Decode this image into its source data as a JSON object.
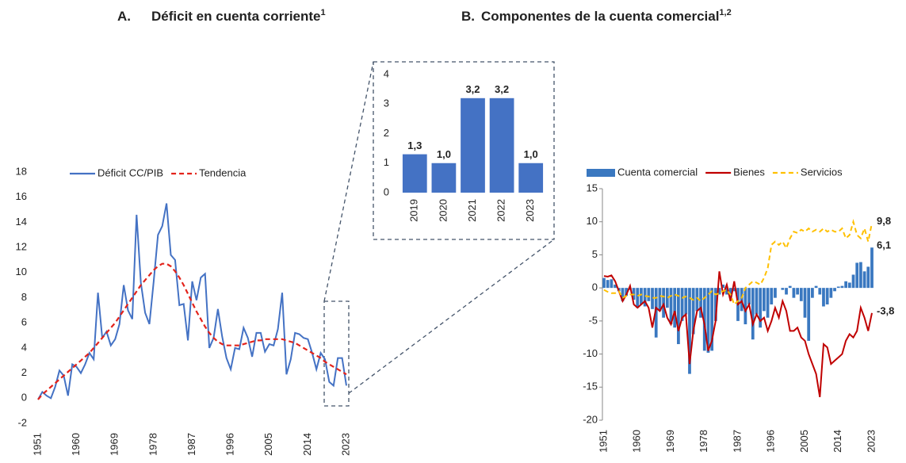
{
  "chart_data": [
    {
      "type": "line",
      "label": "A.",
      "title": "Déficit en cuenta corriente",
      "superscript": "1",
      "x": [
        1951,
        1952,
        1953,
        1954,
        1955,
        1956,
        1957,
        1958,
        1959,
        1960,
        1961,
        1962,
        1963,
        1964,
        1965,
        1966,
        1967,
        1968,
        1969,
        1970,
        1971,
        1972,
        1973,
        1974,
        1975,
        1976,
        1977,
        1978,
        1979,
        1980,
        1981,
        1982,
        1983,
        1984,
        1985,
        1986,
        1987,
        1988,
        1989,
        1990,
        1991,
        1992,
        1993,
        1994,
        1995,
        1996,
        1997,
        1998,
        1999,
        2000,
        2001,
        2002,
        2003,
        2004,
        2005,
        2006,
        2007,
        2008,
        2009,
        2010,
        2011,
        2012,
        2013,
        2014,
        2015,
        2016,
        2017,
        2018,
        2019,
        2020,
        2021,
        2022,
        2023
      ],
      "series": [
        {
          "name": "Déficit CC/PIB",
          "color": "#4472c4",
          "dash": false,
          "values": [
            -0.1,
            0.5,
            0.2,
            0,
            0.9,
            2.2,
            1.8,
            0.2,
            2.7,
            2.5,
            2.0,
            2.7,
            3.6,
            3.1,
            8.4,
            4.8,
            5.3,
            4.2,
            4.7,
            5.9,
            9.0,
            7.0,
            6.3,
            14.6,
            9.2,
            6.8,
            5.9,
            9.3,
            13.0,
            13.7,
            15.5,
            11.4,
            11.0,
            7.4,
            7.5,
            4.6,
            9.3,
            7.8,
            9.6,
            9.9,
            4.0,
            4.8,
            7.1,
            4.9,
            3.2,
            2.3,
            4.0,
            3.9,
            5.6,
            4.8,
            3.3,
            5.2,
            5.2,
            3.7,
            4.3,
            4.2,
            5.5,
            8.4,
            1.9,
            3.1,
            5.2,
            5.1,
            4.8,
            4.7,
            3.6,
            2.3,
            3.6,
            3.1,
            1.3,
            1.0,
            3.2,
            3.2,
            1.0
          ]
        },
        {
          "name": "Tendencia",
          "color": "#e3231b",
          "dash": true,
          "values": [
            -0.1,
            0.3,
            0.6,
            0.9,
            1.2,
            1.5,
            1.8,
            2.1,
            2.4,
            2.7,
            3.0,
            3.3,
            3.6,
            4.0,
            4.4,
            4.8,
            5.2,
            5.6,
            6.0,
            6.5,
            7.0,
            7.5,
            8.0,
            8.5,
            9.0,
            9.4,
            9.8,
            10.2,
            10.5,
            10.7,
            10.7,
            10.5,
            10.1,
            9.6,
            9.0,
            8.3,
            7.6,
            6.9,
            6.3,
            5.7,
            5.2,
            4.8,
            4.5,
            4.3,
            4.2,
            4.2,
            4.2,
            4.2,
            4.3,
            4.4,
            4.5,
            4.6,
            4.6,
            4.7,
            4.7,
            4.7,
            4.7,
            4.7,
            4.6,
            4.5,
            4.4,
            4.2,
            4.0,
            3.8,
            3.6,
            3.4,
            3.2,
            2.9,
            2.7,
            2.5,
            2.3,
            2.1,
            1.9
          ]
        }
      ],
      "xlim": [
        1951,
        2023
      ],
      "xticks": [
        1951,
        1960,
        1969,
        1978,
        1987,
        1996,
        2005,
        2014,
        2023
      ],
      "ylim": [
        -2,
        18
      ],
      "yticks": [
        -2,
        0,
        2,
        4,
        6,
        8,
        10,
        12,
        14,
        16,
        18
      ],
      "legend": "top-left",
      "grid": false
    },
    {
      "type": "bar",
      "categories": [
        "2019",
        "2020",
        "2021",
        "2022",
        "2023"
      ],
      "values": [
        1.3,
        1.0,
        3.2,
        3.2,
        1.0
      ],
      "value_labels": [
        "1,3",
        "1,0",
        "3,2",
        "3,2",
        "1,0"
      ],
      "color": "#4472c4",
      "ylim": [
        0,
        4
      ],
      "yticks": [
        0,
        1,
        2,
        3,
        4
      ],
      "grid": false
    },
    {
      "type": "combo",
      "label": "B.",
      "title": "Componentes de la cuenta comercial",
      "superscript": "1,2",
      "x": [
        1951,
        1952,
        1953,
        1954,
        1955,
        1956,
        1957,
        1958,
        1959,
        1960,
        1961,
        1962,
        1963,
        1964,
        1965,
        1966,
        1967,
        1968,
        1969,
        1970,
        1971,
        1972,
        1973,
        1974,
        1975,
        1976,
        1977,
        1978,
        1979,
        1980,
        1981,
        1982,
        1983,
        1984,
        1985,
        1986,
        1987,
        1988,
        1989,
        1990,
        1991,
        1992,
        1993,
        1994,
        1995,
        1996,
        1997,
        1998,
        1999,
        2000,
        2001,
        2002,
        2003,
        2004,
        2005,
        2006,
        2007,
        2008,
        2009,
        2010,
        2011,
        2012,
        2013,
        2014,
        2015,
        2016,
        2017,
        2018,
        2019,
        2020,
        2021,
        2022,
        2023
      ],
      "series": [
        {
          "name": "Cuenta comercial",
          "kind": "bar",
          "color": "#3a78c0",
          "end_label": "6,1",
          "values": [
            1.5,
            1.2,
            1.3,
            0.5,
            -0.5,
            -2.0,
            -1.2,
            -0.3,
            -1.8,
            -3.0,
            -2.5,
            -2.8,
            -2.0,
            -3.2,
            -7.5,
            -3.5,
            -4.5,
            -3.0,
            -5.5,
            -6.0,
            -8.5,
            -5.0,
            -4.0,
            -13.0,
            -7.0,
            -3.5,
            -4.5,
            -9.5,
            -9.8,
            -9.5,
            -5.0,
            -1.0,
            0.5,
            -1.0,
            -1.5,
            -0.5,
            -5.0,
            -3.5,
            -5.5,
            -2.5,
            -7.8,
            -4.0,
            -6.0,
            -3.5,
            -4.5,
            -2.5,
            -1.5,
            0.0,
            -0.3,
            -1.0,
            0.3,
            -1.5,
            -1.0,
            -2.0,
            -4.5,
            -8.0,
            -1.5,
            0.3,
            -1.0,
            -2.8,
            -2.5,
            -1.5,
            -0.5,
            0.2,
            0.3,
            1.0,
            0.8,
            2.0,
            3.8,
            3.9,
            2.5,
            3.2,
            6.1
          ]
        },
        {
          "name": "Bienes",
          "kind": "line",
          "dash": false,
          "color": "#c00000",
          "end_label": "-3,8",
          "values": [
            1.8,
            1.7,
            1.9,
            1.0,
            -0.5,
            -2.0,
            -1.0,
            0.3,
            -2.5,
            -3.0,
            -2.5,
            -2.0,
            -3.0,
            -6.0,
            -3.0,
            -3.5,
            -2.5,
            -4.5,
            -5.5,
            -3.5,
            -6.5,
            -4.5,
            -4.0,
            -11.5,
            -6.5,
            -3.5,
            -3.0,
            -5.5,
            -9.5,
            -8.0,
            -5.0,
            2.5,
            -1.0,
            0.5,
            -2.0,
            1.0,
            -2.5,
            -2.0,
            -3.5,
            -2.5,
            -5.5,
            -4.0,
            -5.0,
            -4.5,
            -6.5,
            -5.0,
            -3.0,
            -4.5,
            -2.0,
            -3.5,
            -6.5,
            -6.5,
            -6.0,
            -7.5,
            -8.0,
            -10.0,
            -11.5,
            -13.0,
            -16.5,
            -8.5,
            -9.0,
            -11.5,
            -11.0,
            -10.5,
            -10.0,
            -8.0,
            -7.0,
            -7.5,
            -6.5,
            -3.0,
            -4.5,
            -6.5,
            -3.8
          ]
        },
        {
          "name": "Servicios",
          "kind": "line",
          "dash": true,
          "color": "#ffc000",
          "end_label": "9,8",
          "values": [
            -0.3,
            -0.6,
            -0.8,
            -0.8,
            -0.5,
            -1.5,
            -1.2,
            -1.0,
            -1.0,
            -1.2,
            -1.0,
            -1.2,
            -1.3,
            -1.5,
            -1.5,
            -1.2,
            -1.3,
            -1.5,
            -1.2,
            -1.0,
            -1.2,
            -1.5,
            -1.3,
            -1.5,
            -1.8,
            -1.5,
            -2.0,
            -1.5,
            -1.0,
            -0.5,
            -1.0,
            -0.8,
            -0.5,
            -0.3,
            -1.0,
            -2.5,
            -2.0,
            -1.5,
            0.0,
            0.5,
            1.0,
            0.8,
            0.5,
            1.5,
            3.0,
            6.5,
            7.0,
            6.5,
            7.0,
            6.0,
            7.5,
            8.5,
            8.3,
            8.8,
            8.5,
            9.0,
            8.5,
            8.8,
            8.5,
            9.0,
            8.5,
            8.8,
            8.5,
            8.5,
            9.0,
            7.5,
            8.0,
            10.0,
            8.0,
            7.5,
            9.0,
            7.0,
            9.8
          ]
        }
      ],
      "xlim": [
        1951,
        2023
      ],
      "xticks": [
        1951,
        1960,
        1969,
        1978,
        1987,
        1996,
        2005,
        2014,
        2023
      ],
      "ylim": [
        -20,
        15
      ],
      "yticks": [
        -20,
        -15,
        -10,
        -5,
        0,
        5,
        10,
        15
      ],
      "legend": "top",
      "grid": false
    }
  ]
}
